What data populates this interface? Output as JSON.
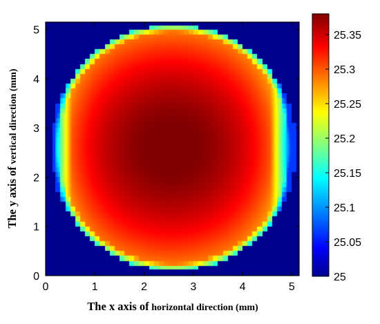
{
  "chart_data": {
    "type": "heatmap",
    "title": "",
    "xlabel_main": "The x axis of",
    "xlabel_small": " horizontal direction (mm)",
    "ylabel_main": "The y axis of",
    "ylabel_small": " vertical direction (mm)",
    "x_ticks": [
      "0",
      "1",
      "2",
      "3",
      "4",
      "5"
    ],
    "y_ticks": [
      "0",
      "1",
      "2",
      "3",
      "4",
      "5"
    ],
    "xlim": [
      0,
      5.15
    ],
    "ylim": [
      0,
      5.15
    ],
    "grid": false,
    "colorbar": {
      "range": [
        25.0,
        25.38
      ],
      "ticks": [
        "25",
        "25.05",
        "25.1",
        "25.15",
        "25.2",
        "25.25",
        "25.3",
        "25.35"
      ],
      "colormap": "jet"
    },
    "field": {
      "description_points": [
        {
          "x": 2.55,
          "y": 2.6,
          "value": 25.38
        },
        {
          "x": 1.0,
          "y": 2.6,
          "value": 25.3
        },
        {
          "x": 0.5,
          "y": 2.6,
          "value": 25.22
        },
        {
          "x": 0.15,
          "y": 2.6,
          "value": 25.12
        },
        {
          "x": 2.55,
          "y": 4.9,
          "value": 25.24
        },
        {
          "x": 2.55,
          "y": 0.2,
          "value": 25.24
        }
      ],
      "region": "circle",
      "region_center": [
        2.6,
        2.6
      ],
      "region_radius": 2.5,
      "background_value": 25.0
    },
    "colors": {
      "background": "#00008f",
      "max": "#800000"
    }
  }
}
